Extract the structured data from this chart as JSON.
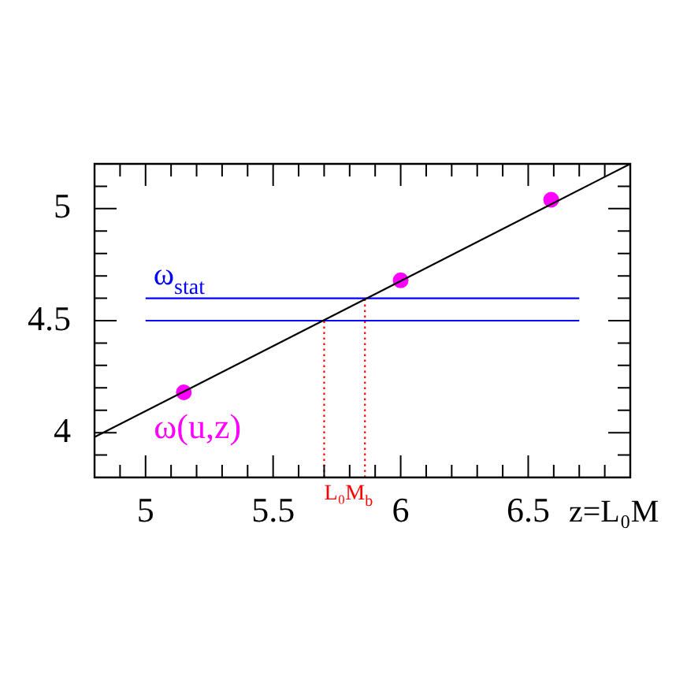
{
  "chart_data": {
    "type": "line",
    "xlabel": "z=L₀M",
    "xlim": [
      4.8,
      6.9
    ],
    "ylim": [
      3.8,
      5.2
    ],
    "xticks": [
      {
        "value": 4.9,
        "label": null
      },
      5,
      {
        "value": 5.1,
        "label": null
      },
      {
        "value": 5.2,
        "label": null
      },
      {
        "value": 5.3,
        "label": null
      },
      {
        "value": 5.4,
        "label": null
      },
      5.5,
      {
        "value": 5.6,
        "label": null
      },
      {
        "value": 5.7,
        "label": null
      },
      {
        "value": 5.8,
        "label": null
      },
      {
        "value": 5.9,
        "label": null
      },
      6,
      {
        "value": 6.1,
        "label": null
      },
      {
        "value": 6.2,
        "label": null
      },
      {
        "value": 6.3,
        "label": null
      },
      {
        "value": 6.4,
        "label": null
      },
      6.5,
      {
        "value": 6.6,
        "label": null
      },
      {
        "value": 6.7,
        "label": null
      },
      {
        "value": 6.8,
        "label": null
      }
    ],
    "yticks": [
      {
        "value": 3.9,
        "label": null
      },
      4,
      {
        "value": 4.1,
        "label": null
      },
      {
        "value": 4.2,
        "label": null
      },
      {
        "value": 4.3,
        "label": null
      },
      {
        "value": 4.4,
        "label": null
      },
      4.5,
      {
        "value": 4.6,
        "label": null
      },
      {
        "value": 4.7,
        "label": null
      },
      {
        "value": 4.8,
        "label": null
      },
      {
        "value": 4.9,
        "label": null
      },
      5,
      {
        "value": 5.1,
        "label": null
      }
    ],
    "grid": false,
    "legend": false,
    "series": [
      {
        "color": "#000000",
        "x": [
          4.8,
          6.9
        ],
        "values": [
          3.98,
          5.2
        ]
      },
      {
        "name": "ω$_{stat}$",
        "color": "#0000ff",
        "x": [
          5.0,
          6.7
        ],
        "values": [
          4.6,
          4.6
        ]
      },
      {
        "color": "#0000ff",
        "x": [
          5.0,
          6.7
        ],
        "values": [
          4.5,
          4.5
        ]
      },
      {
        "color": "#ff0000",
        "line_style": "dotted",
        "x": [
          5.7,
          5.7
        ],
        "values": [
          3.8,
          4.5
        ]
      },
      {
        "color": "#ff0000",
        "line_style": "dotted",
        "x": [
          5.86,
          5.86
        ],
        "values": [
          3.8,
          4.6
        ]
      },
      {
        "type": "scatter",
        "name": "ω(u,z)",
        "color": "#ff00ff",
        "marker": "circle",
        "x": [
          5.15,
          6.0,
          6.59
        ],
        "values": [
          4.18,
          4.68,
          5.04
        ]
      }
    ],
    "annotations": [
      "L₀M$_{b}$"
    ]
  }
}
